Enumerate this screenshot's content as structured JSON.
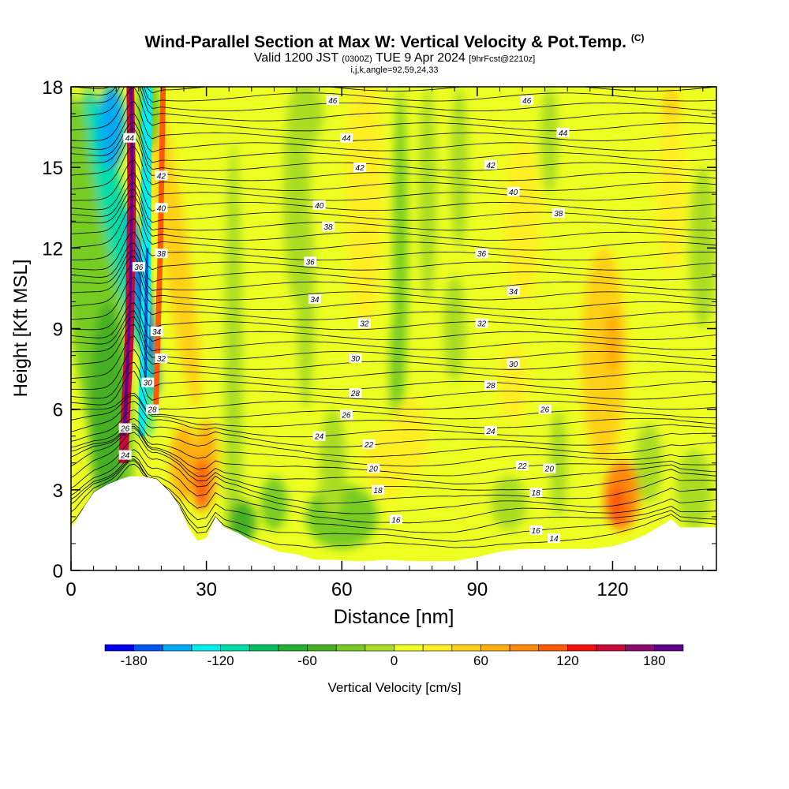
{
  "title": {
    "main": "Wind-Parallel Section at Max W: Vertical Velocity & Pot.Temp.",
    "copyright": "(C)",
    "valid_prefix": "Valid 1200 JST",
    "valid_z": "(0300Z)",
    "valid_date": "TUE 9 Apr 2024",
    "forecast": "[9hrFcst@2210z]",
    "indices": "i,j,k,angle=92,59,24,33"
  },
  "chart_data": {
    "type": "heatmap",
    "xlabel": "Distance [nm]",
    "ylabel": "Height [Kft MSL]",
    "xlim": [
      0,
      143
    ],
    "ylim": [
      0,
      18
    ],
    "x_ticks": [
      0,
      30,
      60,
      90,
      120
    ],
    "y_ticks": [
      0,
      3,
      6,
      9,
      12,
      15,
      18
    ],
    "colorbar": {
      "label": "Vertical Velocity [cm/s]",
      "ticks": [
        -180,
        -120,
        -60,
        0,
        60,
        120,
        180
      ],
      "levels": [
        -200,
        -180,
        -160,
        -140,
        -120,
        -100,
        -80,
        -60,
        -40,
        -20,
        0,
        20,
        40,
        60,
        80,
        100,
        120,
        140,
        160,
        180,
        200
      ],
      "colors": [
        "#0000ee",
        "#0055ee",
        "#00aaf5",
        "#00eeee",
        "#00dda8",
        "#00c060",
        "#22b030",
        "#44b020",
        "#77cc22",
        "#aadd22",
        "#eeff22",
        "#ffee22",
        "#ffd014",
        "#ffb00c",
        "#ff8a0a",
        "#ff5a08",
        "#f01010",
        "#c80a3a",
        "#8a0a6e",
        "#5a008a"
      ]
    },
    "contour_labels": [
      {
        "text": "46",
        "x": 58,
        "y": 17.5
      },
      {
        "text": "46",
        "x": 101,
        "y": 17.5
      },
      {
        "text": "44",
        "x": 13,
        "y": 16.1
      },
      {
        "text": "44",
        "x": 61,
        "y": 16.1
      },
      {
        "text": "44",
        "x": 109,
        "y": 16.3
      },
      {
        "text": "42",
        "x": 20,
        "y": 14.7
      },
      {
        "text": "42",
        "x": 64,
        "y": 15.0
      },
      {
        "text": "42",
        "x": 93,
        "y": 15.1
      },
      {
        "text": "40",
        "x": 20,
        "y": 13.5
      },
      {
        "text": "40",
        "x": 55,
        "y": 13.6
      },
      {
        "text": "40",
        "x": 98,
        "y": 14.1
      },
      {
        "text": "38",
        "x": 57,
        "y": 12.8
      },
      {
        "text": "38",
        "x": 108,
        "y": 13.3
      },
      {
        "text": "38",
        "x": 20,
        "y": 11.8
      },
      {
        "text": "36",
        "x": 15,
        "y": 11.3
      },
      {
        "text": "36",
        "x": 53,
        "y": 11.5
      },
      {
        "text": "36",
        "x": 91,
        "y": 11.8
      },
      {
        "text": "34",
        "x": 54,
        "y": 10.1
      },
      {
        "text": "34",
        "x": 98,
        "y": 10.4
      },
      {
        "text": "34",
        "x": 19,
        "y": 8.9
      },
      {
        "text": "32",
        "x": 20,
        "y": 7.9
      },
      {
        "text": "32",
        "x": 65,
        "y": 9.2
      },
      {
        "text": "32",
        "x": 91,
        "y": 9.2
      },
      {
        "text": "30",
        "x": 63,
        "y": 7.9
      },
      {
        "text": "30",
        "x": 98,
        "y": 7.7
      },
      {
        "text": "30",
        "x": 17,
        "y": 7.0
      },
      {
        "text": "28",
        "x": 63,
        "y": 6.6
      },
      {
        "text": "28",
        "x": 93,
        "y": 6.9
      },
      {
        "text": "28",
        "x": 18,
        "y": 6.0
      },
      {
        "text": "26",
        "x": 61,
        "y": 5.8
      },
      {
        "text": "26",
        "x": 105,
        "y": 6.0
      },
      {
        "text": "26",
        "x": 12,
        "y": 5.3
      },
      {
        "text": "24",
        "x": 55,
        "y": 5.0
      },
      {
        "text": "24",
        "x": 93,
        "y": 5.2
      },
      {
        "text": "24",
        "x": 12,
        "y": 4.3
      },
      {
        "text": "22",
        "x": 66,
        "y": 4.7
      },
      {
        "text": "22",
        "x": 100,
        "y": 3.9
      },
      {
        "text": "20",
        "x": 67,
        "y": 3.8
      },
      {
        "text": "20",
        "x": 106,
        "y": 3.8
      },
      {
        "text": "18",
        "x": 68,
        "y": 3.0
      },
      {
        "text": "18",
        "x": 103,
        "y": 2.9
      },
      {
        "text": "16",
        "x": 72,
        "y": 1.9
      },
      {
        "text": "16",
        "x": 103,
        "y": 1.5
      },
      {
        "text": "14",
        "x": 107,
        "y": 1.2
      }
    ]
  }
}
